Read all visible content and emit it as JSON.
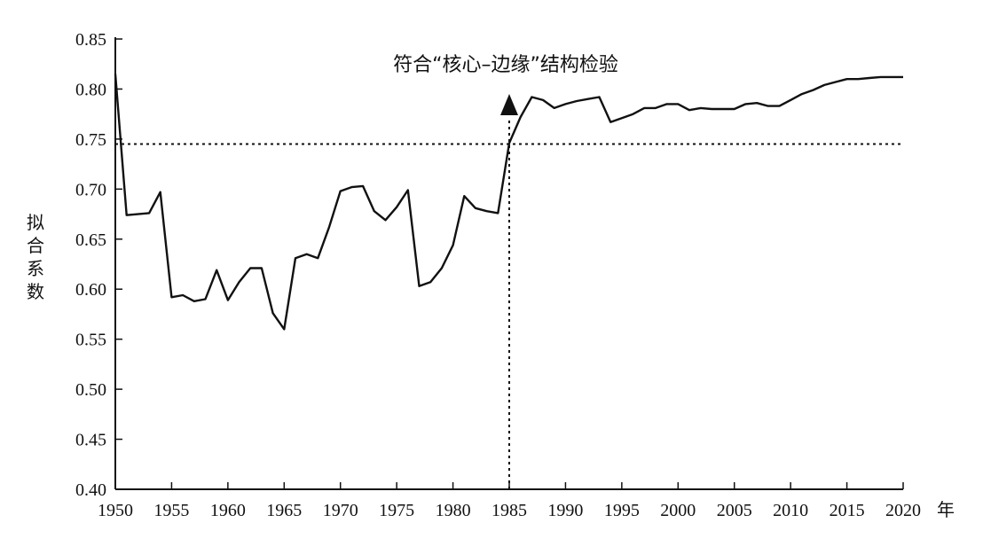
{
  "chart_data": {
    "type": "line",
    "title": "",
    "xlabel": "年",
    "ylabel": "拟合系数",
    "xlim": [
      1950,
      2020
    ],
    "ylim": [
      0.4,
      0.85
    ],
    "x_ticks": [
      1950,
      1955,
      1960,
      1965,
      1970,
      1975,
      1980,
      1985,
      1990,
      1995,
      2000,
      2005,
      2010,
      2015,
      2020
    ],
    "y_ticks": [
      "0.40",
      "0.45",
      "0.50",
      "0.55",
      "0.60",
      "0.65",
      "0.70",
      "0.75",
      "0.80",
      "0.85"
    ],
    "grid": false,
    "series": [
      {
        "x": [
          1950,
          1951,
          1952,
          1953,
          1954,
          1955,
          1956,
          1957,
          1958,
          1959,
          1960,
          1961,
          1962,
          1963,
          1964,
          1965,
          1966,
          1967,
          1968,
          1969,
          1970,
          1971,
          1972,
          1973,
          1974,
          1975,
          1976,
          1977,
          1978,
          1979,
          1980,
          1981,
          1982,
          1983,
          1984,
          1985,
          1986,
          1987,
          1988,
          1989,
          1990,
          1991,
          1992,
          1993,
          1994,
          1995,
          1996,
          1997,
          1998,
          1999,
          2000,
          2001,
          2002,
          2003,
          2004,
          2005,
          2006,
          2007,
          2008,
          2009,
          2010,
          2011,
          2012,
          2013,
          2014,
          2015,
          2016,
          2017,
          2018,
          2019,
          2020
        ],
        "y": [
          0.815,
          0.674,
          0.675,
          0.676,
          0.697,
          0.592,
          0.594,
          0.588,
          0.59,
          0.619,
          0.589,
          0.607,
          0.621,
          0.621,
          0.576,
          0.56,
          0.631,
          0.635,
          0.631,
          0.662,
          0.698,
          0.702,
          0.703,
          0.678,
          0.669,
          0.682,
          0.699,
          0.603,
          0.607,
          0.621,
          0.644,
          0.693,
          0.681,
          0.678,
          0.676,
          0.746,
          0.772,
          0.792,
          0.789,
          0.781,
          0.785,
          0.788,
          0.79,
          0.792,
          0.767,
          0.771,
          0.775,
          0.781,
          0.781,
          0.785,
          0.785,
          0.779,
          0.781,
          0.78,
          0.78,
          0.78,
          0.785,
          0.786,
          0.783,
          0.783,
          0.789,
          0.795,
          0.799,
          0.804,
          0.807,
          0.81,
          0.81,
          0.811,
          0.812,
          0.812,
          0.812
        ]
      }
    ],
    "reference_line": {
      "y": 0.745
    },
    "marker_x": 1985,
    "annotation": "符合“核心–边缘”结构检验"
  }
}
